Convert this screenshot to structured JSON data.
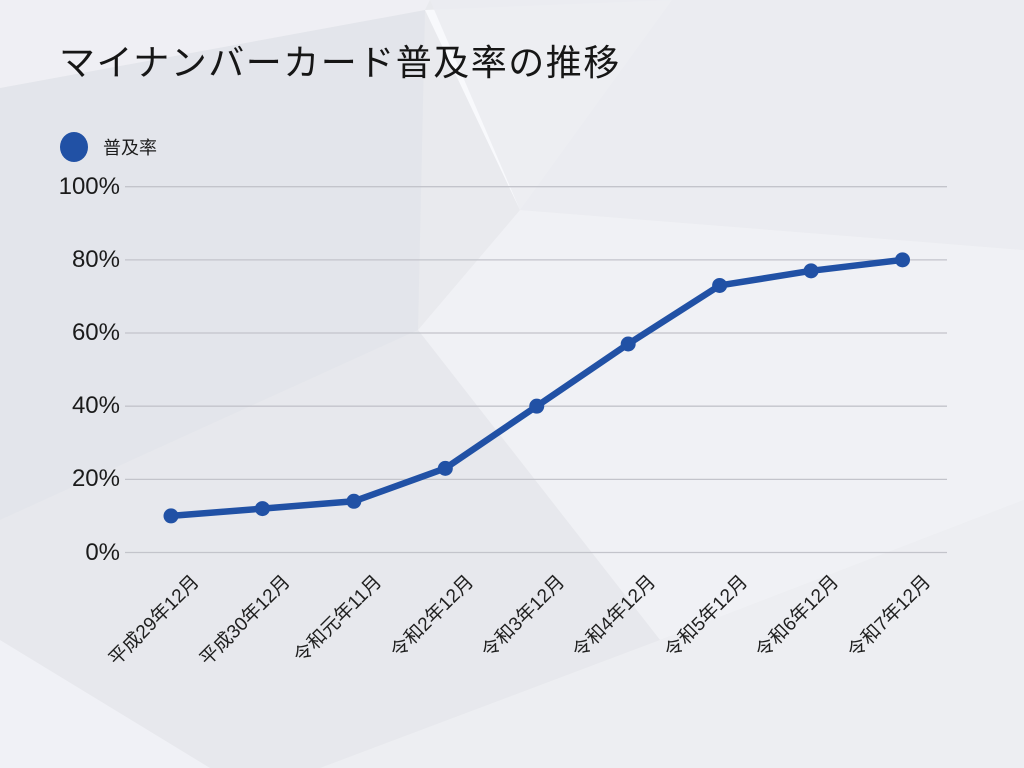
{
  "page": {
    "title": "マイナンバーカード普及率の推移"
  },
  "legend": {
    "label": "普及率"
  },
  "colors": {
    "accent": "#2151a5",
    "gridline": "#c3c4cb",
    "text": "#1b1b1b",
    "background": "#e9eaee"
  },
  "chart_data": {
    "type": "line",
    "title": "マイナンバーカード普及率の推移",
    "categories": [
      "平成29年12月",
      "平成30年12月",
      "令和元年11月",
      "令和2年12月",
      "令和3年12月",
      "令和4年12月",
      "令和5年12月",
      "令和6年12月",
      "令和7年12月"
    ],
    "series": [
      {
        "name": "普及率",
        "values": [
          10,
          12,
          14,
          23,
          40,
          57,
          73,
          77,
          80
        ]
      }
    ],
    "xlabel": "",
    "ylabel": "",
    "ylim": [
      0,
      100
    ],
    "yticks": [
      0,
      20,
      40,
      60,
      80,
      100
    ],
    "ytick_labels": [
      "0%",
      "20%",
      "40%",
      "60%",
      "80%",
      "100%"
    ],
    "grid": "horizontal",
    "legend_position": "top-left",
    "marker": "circle"
  }
}
